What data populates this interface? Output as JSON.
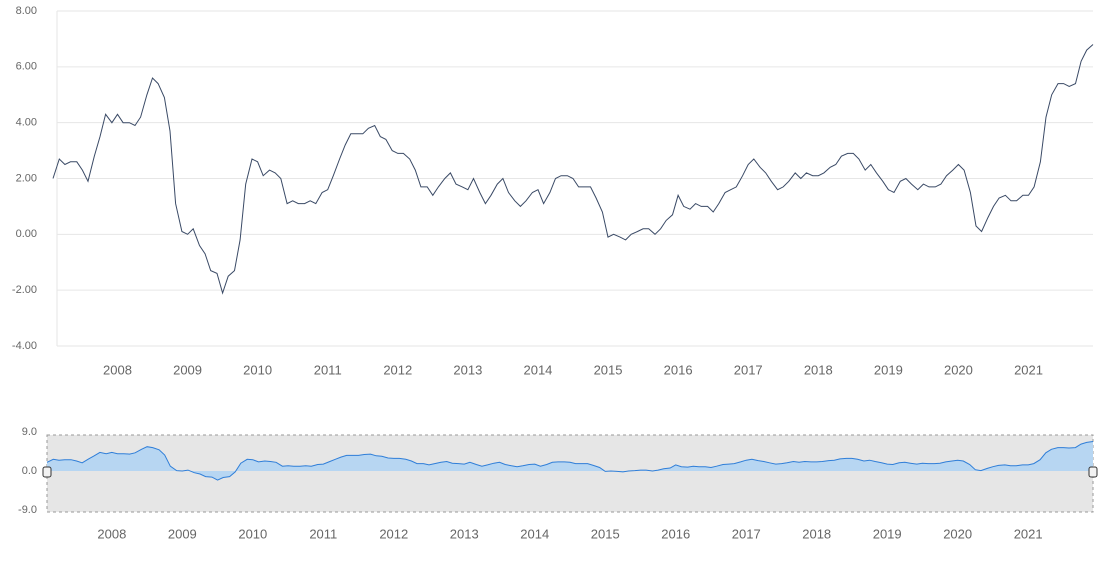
{
  "chart_data": {
    "type": "line",
    "color": "#3a4a66",
    "grid": true,
    "x": [
      2007.08,
      2007.17,
      2007.25,
      2007.33,
      2007.42,
      2007.5,
      2007.58,
      2007.67,
      2007.75,
      2007.83,
      2007.92,
      2008.0,
      2008.08,
      2008.17,
      2008.25,
      2008.33,
      2008.42,
      2008.5,
      2008.58,
      2008.67,
      2008.75,
      2008.83,
      2008.92,
      2009.0,
      2009.08,
      2009.17,
      2009.25,
      2009.33,
      2009.42,
      2009.5,
      2009.58,
      2009.67,
      2009.75,
      2009.83,
      2009.92,
      2010.0,
      2010.08,
      2010.17,
      2010.25,
      2010.33,
      2010.42,
      2010.5,
      2010.58,
      2010.67,
      2010.75,
      2010.83,
      2010.92,
      2011.0,
      2011.08,
      2011.17,
      2011.25,
      2011.33,
      2011.42,
      2011.5,
      2011.58,
      2011.67,
      2011.75,
      2011.83,
      2011.92,
      2012.0,
      2012.08,
      2012.17,
      2012.25,
      2012.33,
      2012.42,
      2012.5,
      2012.58,
      2012.67,
      2012.75,
      2012.83,
      2012.92,
      2013.0,
      2013.08,
      2013.17,
      2013.25,
      2013.33,
      2013.42,
      2013.5,
      2013.58,
      2013.67,
      2013.75,
      2013.83,
      2013.92,
      2014.0,
      2014.08,
      2014.17,
      2014.25,
      2014.33,
      2014.42,
      2014.5,
      2014.58,
      2014.67,
      2014.75,
      2014.83,
      2014.92,
      2015.0,
      2015.08,
      2015.17,
      2015.25,
      2015.33,
      2015.42,
      2015.5,
      2015.58,
      2015.67,
      2015.75,
      2015.83,
      2015.92,
      2016.0,
      2016.08,
      2016.17,
      2016.25,
      2016.33,
      2016.42,
      2016.5,
      2016.58,
      2016.67,
      2016.75,
      2016.83,
      2016.92,
      2017.0,
      2017.08,
      2017.17,
      2017.25,
      2017.33,
      2017.42,
      2017.5,
      2017.58,
      2017.67,
      2017.75,
      2017.83,
      2017.92,
      2018.0,
      2018.08,
      2018.17,
      2018.25,
      2018.33,
      2018.42,
      2018.5,
      2018.58,
      2018.67,
      2018.75,
      2018.83,
      2018.92,
      2019.0,
      2019.08,
      2019.17,
      2019.25,
      2019.33,
      2019.42,
      2019.5,
      2019.58,
      2019.67,
      2019.75,
      2019.83,
      2019.92,
      2020.0,
      2020.08,
      2020.17,
      2020.25,
      2020.33,
      2020.42,
      2020.5,
      2020.58,
      2020.67,
      2020.75,
      2020.83,
      2020.92,
      2021.0,
      2021.08,
      2021.17,
      2021.25,
      2021.33,
      2021.42,
      2021.5,
      2021.58,
      2021.67,
      2021.75,
      2021.83,
      2021.92
    ],
    "values": [
      2.0,
      2.7,
      2.5,
      2.6,
      2.6,
      2.3,
      1.9,
      2.8,
      3.5,
      4.3,
      4.0,
      4.3,
      4.0,
      4.0,
      3.9,
      4.2,
      5.0,
      5.6,
      5.4,
      4.9,
      3.7,
      1.1,
      0.1,
      0.0,
      0.2,
      -0.4,
      -0.7,
      -1.3,
      -1.4,
      -2.1,
      -1.5,
      -1.3,
      -0.2,
      1.8,
      2.7,
      2.6,
      2.1,
      2.3,
      2.2,
      2.0,
      1.1,
      1.2,
      1.1,
      1.1,
      1.2,
      1.1,
      1.5,
      1.6,
      2.1,
      2.7,
      3.2,
      3.6,
      3.6,
      3.6,
      3.8,
      3.9,
      3.5,
      3.4,
      3.0,
      2.9,
      2.9,
      2.7,
      2.3,
      1.7,
      1.7,
      1.4,
      1.7,
      2.0,
      2.2,
      1.8,
      1.7,
      1.6,
      2.0,
      1.5,
      1.1,
      1.4,
      1.8,
      2.0,
      1.5,
      1.2,
      1.0,
      1.2,
      1.5,
      1.6,
      1.1,
      1.5,
      2.0,
      2.1,
      2.1,
      2.0,
      1.7,
      1.7,
      1.7,
      1.3,
      0.8,
      -0.1,
      0.0,
      -0.1,
      -0.2,
      0.0,
      0.1,
      0.2,
      0.2,
      0.0,
      0.2,
      0.5,
      0.7,
      1.4,
      1.0,
      0.9,
      1.1,
      1.0,
      1.0,
      0.8,
      1.1,
      1.5,
      1.6,
      1.7,
      2.1,
      2.5,
      2.7,
      2.4,
      2.2,
      1.9,
      1.6,
      1.7,
      1.9,
      2.2,
      2.0,
      2.2,
      2.1,
      2.1,
      2.2,
      2.4,
      2.5,
      2.8,
      2.9,
      2.9,
      2.7,
      2.3,
      2.5,
      2.2,
      1.9,
      1.6,
      1.5,
      1.9,
      2.0,
      1.8,
      1.6,
      1.8,
      1.7,
      1.7,
      1.8,
      2.1,
      2.3,
      2.5,
      2.3,
      1.5,
      0.3,
      0.1,
      0.6,
      1.0,
      1.3,
      1.4,
      1.2,
      1.2,
      1.4,
      1.4,
      1.7,
      2.6,
      4.2,
      5.0,
      5.4,
      5.4,
      5.3,
      5.4,
      6.2,
      6.6,
      6.8
    ],
    "xlim": [
      2007.08,
      2021.92
    ],
    "xticks": [
      2008,
      2009,
      2010,
      2011,
      2012,
      2013,
      2014,
      2015,
      2016,
      2017,
      2018,
      2019,
      2020,
      2021
    ],
    "ylim": [
      -4,
      8
    ],
    "yticks": [
      {
        "value": -4,
        "label": "-4.00"
      },
      {
        "value": -2,
        "label": "-2.00"
      },
      {
        "value": 0,
        "label": "0.00"
      },
      {
        "value": 2,
        "label": "2.00"
      },
      {
        "value": 4,
        "label": "4.00"
      },
      {
        "value": 6,
        "label": "6.00"
      },
      {
        "value": 8,
        "label": "8.00"
      }
    ],
    "navigator": {
      "color": "#2f7ed8",
      "fill": "#b7d6f2",
      "ylim": [
        -9,
        9
      ],
      "yticks": [
        {
          "value": -9,
          "label": "-9.0"
        },
        {
          "value": 0,
          "label": "0.0"
        },
        {
          "value": 9,
          "label": "9.0"
        }
      ]
    }
  }
}
